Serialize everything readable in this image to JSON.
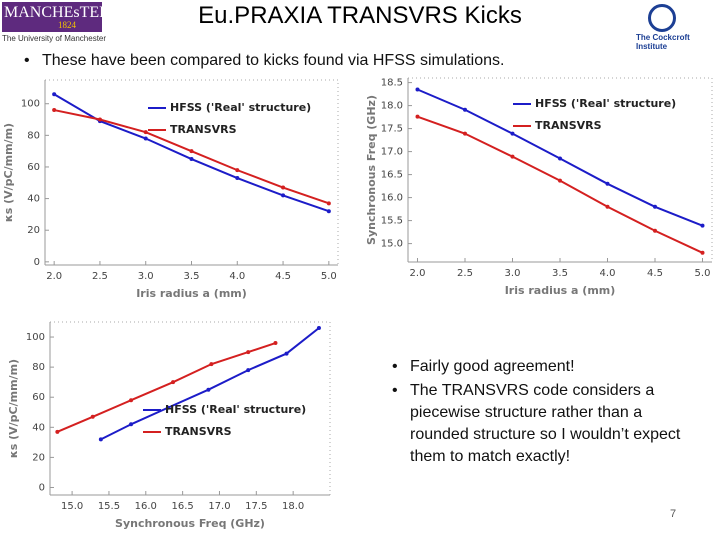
{
  "title": "Eu.PRAXIA TRANSVRS Kicks",
  "logos": {
    "manchester": "MANCHEsTER",
    "year": "1824",
    "university": "The University of Manchester",
    "cockcroft": "The Cockcroft Institute"
  },
  "bullets": [
    "These have been compared to kicks found via HFSS simulations."
  ],
  "side_bullets": [
    "Fairly good agreement!",
    "The TRANSVRS code considers a piecewise structure rather than a rounded structure so I wouldn’t expect them to match exactly!"
  ],
  "page_number": "7",
  "chart_data": [
    {
      "type": "line",
      "xlabel": "Iris radius a (mm)",
      "ylabel": "κs (V/pC/mm/m)",
      "x": [
        2.0,
        2.5,
        3.0,
        3.5,
        4.0,
        4.5,
        5.0
      ],
      "series": [
        {
          "name": "HFSS ('Real' structure)",
          "color": "#1c1cc8",
          "values": [
            106,
            89,
            78,
            65,
            53,
            42,
            32
          ]
        },
        {
          "name": "TRANSVRS",
          "color": "#d42020",
          "values": [
            96,
            90,
            82,
            70,
            58,
            47,
            37
          ]
        }
      ],
      "xlim": [
        1.9,
        5.1
      ],
      "ylim": [
        -2,
        115
      ],
      "xticks": [
        {
          "value": 2,
          "label": "2.0"
        },
        2.5,
        {
          "value": 3,
          "label": "3.0"
        },
        3.5,
        {
          "value": 4,
          "label": "4.0"
        },
        4.5,
        {
          "value": 5,
          "label": "5.0"
        }
      ],
      "yticks": [
        0,
        20,
        40,
        60,
        80,
        100
      ]
    },
    {
      "type": "line",
      "xlabel": "Iris radius a (mm)",
      "ylabel": "Synchronous Freq (GHz)",
      "x": [
        2.0,
        2.5,
        3.0,
        3.5,
        4.0,
        4.5,
        5.0
      ],
      "series": [
        {
          "name": "HFSS ('Real' structure)",
          "color": "#1c1cc8",
          "values": [
            18.35,
            17.91,
            17.39,
            16.85,
            16.3,
            15.8,
            15.39
          ]
        },
        {
          "name": "TRANSVRS",
          "color": "#d42020",
          "values": [
            17.76,
            17.39,
            16.89,
            16.37,
            15.8,
            15.28,
            14.8
          ]
        }
      ],
      "xlim": [
        1.9,
        5.1
      ],
      "ylim": [
        14.6,
        18.6
      ],
      "xticks": [
        {
          "value": 2,
          "label": "2.0"
        },
        2.5,
        {
          "value": 3,
          "label": "3.0"
        },
        3.5,
        {
          "value": 4,
          "label": "4.0"
        },
        4.5,
        {
          "value": 5,
          "label": "5.0"
        }
      ],
      "yticks": [
        {
          "value": 15,
          "label": "15.0"
        },
        15.5,
        {
          "value": 16,
          "label": "16.0"
        },
        16.5,
        {
          "value": 17,
          "label": "17.0"
        },
        17.5,
        {
          "value": 18,
          "label": "18.0"
        },
        18.5
      ]
    },
    {
      "type": "line",
      "xlabel": "Synchronous Freq (GHz)",
      "ylabel": "κs (V/pC/mm/m)",
      "series": [
        {
          "name": "HFSS ('Real' structure)",
          "color": "#1c1cc8",
          "x": [
            18.35,
            17.91,
            17.39,
            16.85,
            16.3,
            15.8,
            15.39
          ],
          "values": [
            106,
            89,
            78,
            65,
            53,
            42,
            32
          ]
        },
        {
          "name": "TRANSVRS",
          "color": "#d42020",
          "x": [
            17.76,
            17.39,
            16.89,
            16.37,
            15.8,
            15.28,
            14.8
          ],
          "values": [
            96,
            90,
            82,
            70,
            58,
            47,
            37
          ]
        }
      ],
      "xlim": [
        14.7,
        18.5
      ],
      "ylim": [
        -5,
        110
      ],
      "xticks": [
        {
          "value": 15,
          "label": "15.0"
        },
        15.5,
        {
          "value": 16,
          "label": "16.0"
        },
        16.5,
        {
          "value": 17,
          "label": "17.0"
        },
        17.5,
        {
          "value": 18,
          "label": "18.0"
        }
      ],
      "yticks": [
        0,
        20,
        40,
        60,
        80,
        100
      ]
    }
  ]
}
